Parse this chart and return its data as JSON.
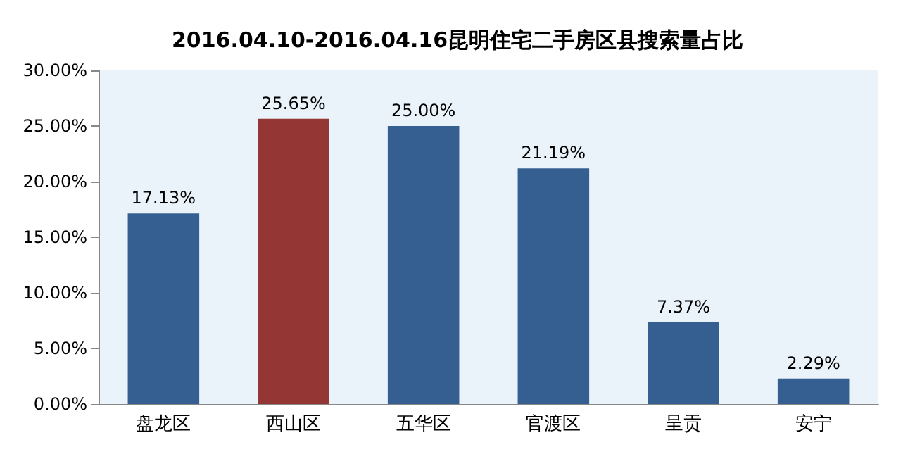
{
  "chart_data": {
    "type": "bar",
    "title": "2016.04.10-2016.04.16昆明住宅二手房区县搜索量占比",
    "categories": [
      "盘龙区",
      "西山区",
      "五华区",
      "官渡区",
      "呈贡",
      "安宁"
    ],
    "values": [
      17.13,
      25.65,
      25.0,
      21.19,
      7.37,
      2.29
    ],
    "colors": [
      "#365f91",
      "#943634",
      "#365f91",
      "#365f91",
      "#365f91",
      "#365f91"
    ],
    "value_labels": [
      "17.13%",
      "25.65%",
      "25.00%",
      "21.19%",
      "7.37%",
      "2.29%"
    ],
    "ylim": [
      0,
      30
    ],
    "yticks": [
      {
        "value": 0,
        "label": "0.00%"
      },
      {
        "value": 5,
        "label": "5.00%"
      },
      {
        "value": 10,
        "label": "10.00%"
      },
      {
        "value": 15,
        "label": "15.00%"
      },
      {
        "value": 20,
        "label": "20.00%"
      },
      {
        "value": 25,
        "label": "25.00%"
      },
      {
        "value": 30,
        "label": "30.00%"
      }
    ]
  }
}
